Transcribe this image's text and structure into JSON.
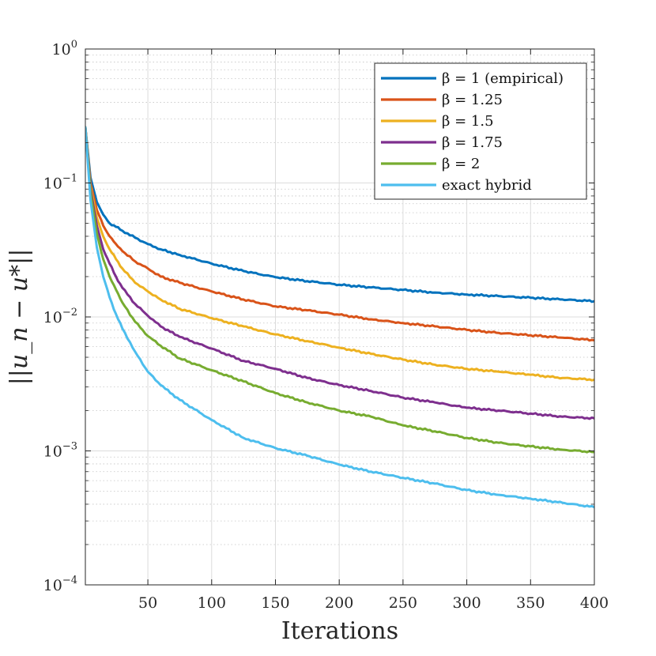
{
  "chart_data": {
    "type": "line",
    "title": "",
    "xlabel": "Iterations",
    "ylabel": "||u_n − u*||",
    "xlim": [
      1,
      400
    ],
    "ylim": [
      0.0001,
      1
    ],
    "yscale": "log",
    "grid": true,
    "legend_position": "top-right",
    "x_ticks": [
      50,
      100,
      150,
      200,
      250,
      300,
      350,
      400
    ],
    "x_tick_labels": [
      "50",
      "100",
      "150",
      "200",
      "250",
      "300",
      "350",
      "400"
    ],
    "y_ticks": [
      0.0001,
      0.001,
      0.01,
      0.1,
      1
    ],
    "y_tick_labels": [
      {
        "base": "10",
        "exp": "−4"
      },
      {
        "base": "10",
        "exp": "−3"
      },
      {
        "base": "10",
        "exp": "−2"
      },
      {
        "base": "10",
        "exp": "−1"
      },
      {
        "base": "10",
        "exp": "0"
      }
    ],
    "x": [
      1,
      5,
      10,
      15,
      20,
      25,
      30,
      40,
      50,
      60,
      75,
      100,
      125,
      150,
      175,
      200,
      225,
      250,
      275,
      300,
      325,
      350,
      375,
      400
    ],
    "series": [
      {
        "name": "β = 1 (empirical)",
        "color": "#0072BD",
        "values": [
          0.26,
          0.11,
          0.072,
          0.058,
          0.05,
          0.047,
          0.044,
          0.039,
          0.035,
          0.032,
          0.029,
          0.025,
          0.022,
          0.0198,
          0.0185,
          0.0174,
          0.0166,
          0.0159,
          0.0152,
          0.0147,
          0.0143,
          0.0139,
          0.0135,
          0.0131
        ]
      },
      {
        "name": "β = 1.25",
        "color": "#D95319",
        "values": [
          0.26,
          0.1,
          0.063,
          0.048,
          0.04,
          0.035,
          0.031,
          0.026,
          0.023,
          0.02,
          0.018,
          0.0155,
          0.0135,
          0.012,
          0.0112,
          0.0104,
          0.0096,
          0.009,
          0.0085,
          0.008,
          0.0076,
          0.0073,
          0.007,
          0.0067
        ]
      },
      {
        "name": "β = 1.5",
        "color": "#EDB120",
        "values": [
          0.26,
          0.095,
          0.055,
          0.04,
          0.032,
          0.027,
          0.023,
          0.018,
          0.0155,
          0.0135,
          0.0115,
          0.0098,
          0.0085,
          0.0074,
          0.0066,
          0.0059,
          0.0053,
          0.0048,
          0.0044,
          0.0041,
          0.0039,
          0.0037,
          0.0035,
          0.0034
        ]
      },
      {
        "name": "β = 1.75",
        "color": "#7E2F8E",
        "values": [
          0.26,
          0.09,
          0.048,
          0.032,
          0.025,
          0.02,
          0.0165,
          0.0125,
          0.0102,
          0.0085,
          0.0071,
          0.0058,
          0.0047,
          0.0041,
          0.0035,
          0.0031,
          0.0028,
          0.0025,
          0.0023,
          0.0021,
          0.002,
          0.0019,
          0.0018,
          0.00175
        ]
      },
      {
        "name": "β = 2",
        "color": "#77AC30",
        "values": [
          0.26,
          0.085,
          0.042,
          0.027,
          0.02,
          0.016,
          0.0128,
          0.0092,
          0.0072,
          0.0061,
          0.0049,
          0.004,
          0.0033,
          0.0027,
          0.0023,
          0.002,
          0.0018,
          0.00155,
          0.0014,
          0.00125,
          0.00115,
          0.00108,
          0.00102,
          0.00098
        ]
      },
      {
        "name": "exact hybrid",
        "color": "#4DBEEE",
        "values": [
          0.26,
          0.075,
          0.033,
          0.02,
          0.014,
          0.0105,
          0.0082,
          0.0055,
          0.0039,
          0.0031,
          0.0024,
          0.0017,
          0.00125,
          0.00105,
          0.00092,
          0.00079,
          0.0007,
          0.00063,
          0.00057,
          0.00051,
          0.00047,
          0.00044,
          0.00041,
          0.00038
        ]
      }
    ]
  }
}
